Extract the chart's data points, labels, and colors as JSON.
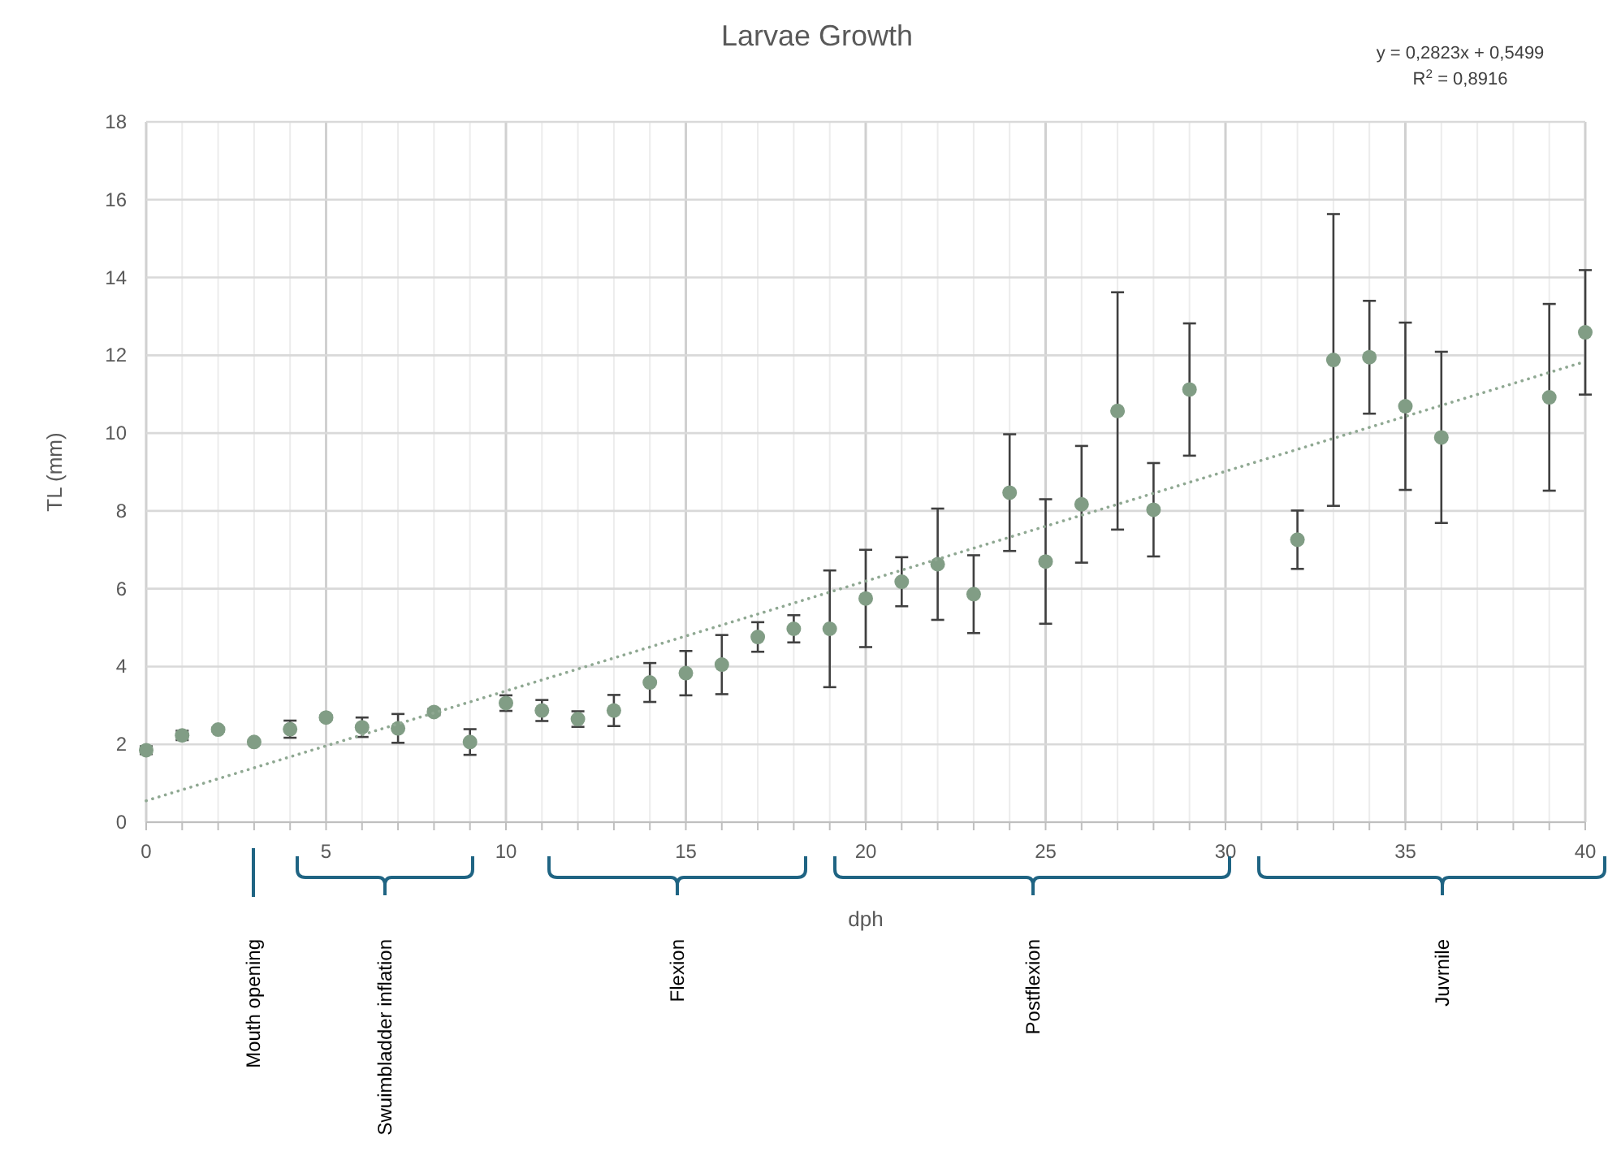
{
  "chart_data": {
    "type": "scatter",
    "title": "Larvae Growth",
    "xlabel": "dph",
    "ylabel": "TL (mm)",
    "xlim": [
      0,
      40
    ],
    "ylim": [
      0,
      18
    ],
    "xticks": [
      0,
      {
        "value": 1,
        "label": null
      },
      {
        "value": 2,
        "label": null
      },
      {
        "value": 3,
        "label": null
      },
      {
        "value": 4,
        "label": null
      },
      5,
      {
        "value": 6,
        "label": null
      },
      {
        "value": 7,
        "label": null
      },
      {
        "value": 8,
        "label": null
      },
      {
        "value": 9,
        "label": null
      },
      10,
      {
        "value": 11,
        "label": null
      },
      {
        "value": 12,
        "label": null
      },
      {
        "value": 13,
        "label": null
      },
      {
        "value": 14,
        "label": null
      },
      15,
      {
        "value": 16,
        "label": null
      },
      {
        "value": 17,
        "label": null
      },
      {
        "value": 18,
        "label": null
      },
      {
        "value": 19,
        "label": null
      },
      20,
      {
        "value": 21,
        "label": null
      },
      {
        "value": 22,
        "label": null
      },
      {
        "value": 23,
        "label": null
      },
      {
        "value": 24,
        "label": null
      },
      25,
      {
        "value": 26,
        "label": null
      },
      {
        "value": 27,
        "label": null
      },
      {
        "value": 28,
        "label": null
      },
      {
        "value": 29,
        "label": null
      },
      30,
      {
        "value": 31,
        "label": null
      },
      {
        "value": 32,
        "label": null
      },
      {
        "value": 33,
        "label": null
      },
      {
        "value": 34,
        "label": null
      },
      35,
      {
        "value": 36,
        "label": null
      },
      {
        "value": 37,
        "label": null
      },
      {
        "value": 38,
        "label": null
      },
      {
        "value": 39,
        "label": null
      },
      40
    ],
    "yticks": [
      0,
      2,
      4,
      6,
      8,
      10,
      12,
      14,
      16,
      18
    ],
    "grid": true,
    "series": [
      {
        "marker": "circle",
        "color": "#819d85",
        "x": [
          0,
          1,
          2,
          3,
          4,
          5,
          6,
          7,
          8,
          9,
          10,
          11,
          12,
          13,
          14,
          15,
          16,
          17,
          18,
          19,
          20,
          21,
          22,
          23,
          24,
          25,
          26,
          27,
          28,
          29,
          32,
          33,
          34,
          35,
          36,
          39,
          40
        ],
        "values": [
          1.85,
          2.23,
          2.38,
          2.06,
          2.39,
          2.69,
          2.44,
          2.41,
          2.83,
          2.06,
          3.06,
          2.87,
          2.65,
          2.87,
          3.59,
          3.83,
          4.05,
          4.76,
          4.97,
          4.97,
          5.75,
          6.18,
          6.63,
          5.86,
          8.47,
          6.7,
          8.17,
          10.57,
          8.03,
          11.12,
          7.26,
          11.88,
          11.95,
          10.69,
          9.89,
          10.92,
          12.59
        ],
        "errors": [
          0.1,
          0.12,
          0.05,
          0.05,
          0.22,
          0.05,
          0.25,
          0.37,
          0.08,
          0.33,
          0.2,
          0.27,
          0.2,
          0.4,
          0.5,
          0.57,
          0.76,
          0.38,
          0.35,
          1.5,
          1.25,
          0.63,
          1.43,
          1,
          1.5,
          1.6,
          1.5,
          3.05,
          1.2,
          1.7,
          0.75,
          3.75,
          1.45,
          2.15,
          2.2,
          2.4,
          1.6
        ]
      },
      {
        "type": "line",
        "line_style": "dotted",
        "color": "#8fa892",
        "x": [
          0,
          40
        ],
        "values": [
          0.55,
          11.84
        ]
      }
    ],
    "annotations": [
      "y = 0,2823x + 0,5499",
      "R$^{2}$ = 0,8916",
      "Mouth opening",
      "Swuimbladder inflation",
      "Flexion",
      "Postflexion",
      "Juvrnile"
    ]
  }
}
